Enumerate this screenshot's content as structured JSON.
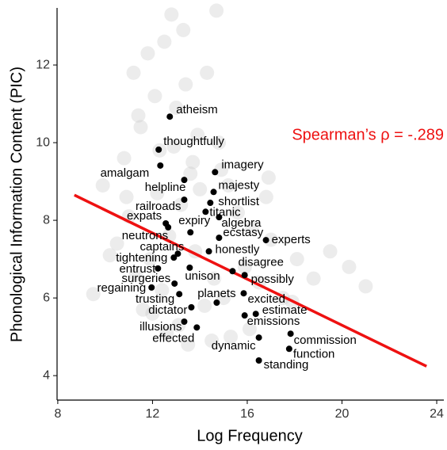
{
  "chart_data": {
    "type": "scatter",
    "xlabel": "Log Frequency",
    "ylabel": "Phonological Information Content (PIC)",
    "annotation": "Spearman’s ρ = -.289",
    "annotation_color": "#ee1111",
    "xlim": [
      7.97,
      24.3
    ],
    "ylim": [
      3.37,
      13.47
    ],
    "xticks": [
      8,
      12,
      16,
      20,
      24
    ],
    "yticks": [
      4,
      6,
      8,
      10,
      12
    ],
    "background": {
      "color": "#c8c8c8",
      "x": [
        11.2,
        11.8,
        12.1,
        12.5,
        13.0,
        13.4,
        13.9,
        14.3,
        10.8,
        11.5,
        12.9,
        13.6,
        14.8,
        15.2,
        12.2,
        11.0,
        10.5,
        13.2,
        14.0,
        12.7,
        11.9,
        13.8,
        15.6,
        16.2,
        17.0,
        18.1,
        16.8,
        15.9,
        14.6,
        12.4,
        11.3,
        10.2,
        9.5,
        9.9,
        12.0,
        13.1,
        14.2,
        15.0,
        16.5,
        17.5,
        18.8,
        19.5,
        20.3,
        21.0,
        17.9,
        16.1,
        15.3,
        14.5,
        13.5,
        12.6,
        11.6,
        10.9,
        12.8,
        13.3,
        14.7,
        11.4,
        12.3,
        13.7,
        14.9,
        16.9
      ],
      "y": [
        11.8,
        12.3,
        11.2,
        12.6,
        10.9,
        11.5,
        10.2,
        11.8,
        9.6,
        10.4,
        9.9,
        9.2,
        10.0,
        8.9,
        8.7,
        8.1,
        7.4,
        8.4,
        8.8,
        7.6,
        7.0,
        7.2,
        8.2,
        7.8,
        7.5,
        7.0,
        8.6,
        6.8,
        6.5,
        6.2,
        6.6,
        7.1,
        6.1,
        8.9,
        5.6,
        5.3,
        5.8,
        6.0,
        6.4,
        6.0,
        6.5,
        7.2,
        6.8,
        6.3,
        5.9,
        5.2,
        5.0,
        4.9,
        4.8,
        5.1,
        5.7,
        8.6,
        13.3,
        12.9,
        13.4,
        10.7,
        9.8,
        9.5,
        9.3,
        9.1
      ]
    },
    "points": {
      "color": "#000000",
      "labels": [
        "atheism",
        "thoughtfully",
        "amalgam",
        "imagery",
        "helpline",
        "majesty",
        "shortlist",
        "railroads",
        "titanic",
        "algebra",
        "expats",
        "neutrons",
        "expiry",
        "ecstasy",
        "experts",
        "honestly",
        "captains",
        "tightening",
        "entrust",
        "unison",
        "disagree",
        "possibly",
        "surgeries",
        "regaining",
        "trusting",
        "planets",
        "excited",
        "dictator",
        "estimate",
        "emissions",
        "illusions",
        "effected",
        "dynamic",
        "commission",
        "function",
        "standing"
      ],
      "x": [
        12.73,
        12.26,
        12.33,
        14.64,
        13.34,
        14.58,
        14.44,
        13.34,
        14.24,
        14.81,
        12.56,
        12.66,
        13.6,
        14.81,
        16.79,
        14.38,
        13.07,
        12.9,
        12.23,
        13.57,
        15.38,
        15.89,
        12.93,
        11.96,
        13.13,
        14.71,
        15.85,
        13.64,
        16.36,
        15.89,
        13.34,
        13.87,
        16.49,
        17.83,
        17.77,
        16.49
      ],
      "y": [
        10.67,
        9.82,
        9.41,
        9.24,
        9.04,
        8.73,
        8.45,
        8.53,
        8.22,
        8.08,
        7.92,
        7.82,
        7.69,
        7.55,
        7.49,
        7.2,
        7.14,
        7.04,
        6.76,
        6.78,
        6.69,
        6.59,
        6.37,
        6.27,
        6.1,
        5.88,
        6.12,
        5.76,
        5.59,
        5.55,
        5.39,
        5.24,
        4.98,
        5.08,
        4.69,
        4.39
      ]
    },
    "fit": {
      "color": "#ee1111",
      "x": [
        8.7,
        23.57
      ],
      "y": [
        8.65,
        4.24
      ]
    }
  }
}
